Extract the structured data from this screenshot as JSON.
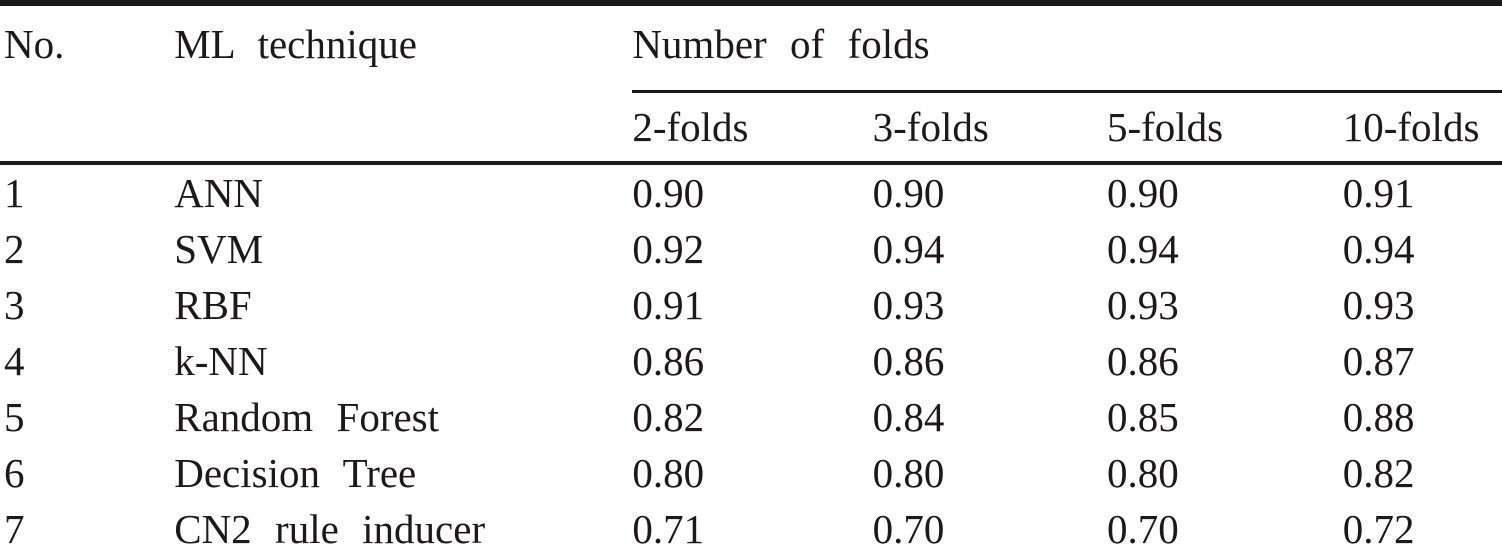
{
  "table": {
    "header": {
      "no": "No.",
      "technique": "ML technique",
      "group": "Number of folds",
      "folds": [
        "2-folds",
        "3-folds",
        "5-folds",
        "10-folds"
      ]
    },
    "rows": [
      {
        "no": "1",
        "technique": "ANN",
        "values": [
          "0.90",
          "0.90",
          "0.90",
          "0.91"
        ]
      },
      {
        "no": "2",
        "technique": "SVM",
        "values": [
          "0.92",
          "0.94",
          "0.94",
          "0.94"
        ]
      },
      {
        "no": "3",
        "technique": "RBF",
        "values": [
          "0.91",
          "0.93",
          "0.93",
          "0.93"
        ]
      },
      {
        "no": "4",
        "technique": "k-NN",
        "values": [
          "0.86",
          "0.86",
          "0.86",
          "0.87"
        ]
      },
      {
        "no": "5",
        "technique": "Random Forest",
        "values": [
          "0.82",
          "0.84",
          "0.85",
          "0.88"
        ]
      },
      {
        "no": "6",
        "technique": "Decision Tree",
        "values": [
          "0.80",
          "0.80",
          "0.80",
          "0.82"
        ]
      },
      {
        "no": "7",
        "technique": "CN2 rule inducer",
        "values": [
          "0.71",
          "0.70",
          "0.70",
          "0.72"
        ]
      }
    ],
    "colors": {
      "text": "#1d191a",
      "rules": "#1d191a",
      "background": "#ffffff"
    }
  }
}
